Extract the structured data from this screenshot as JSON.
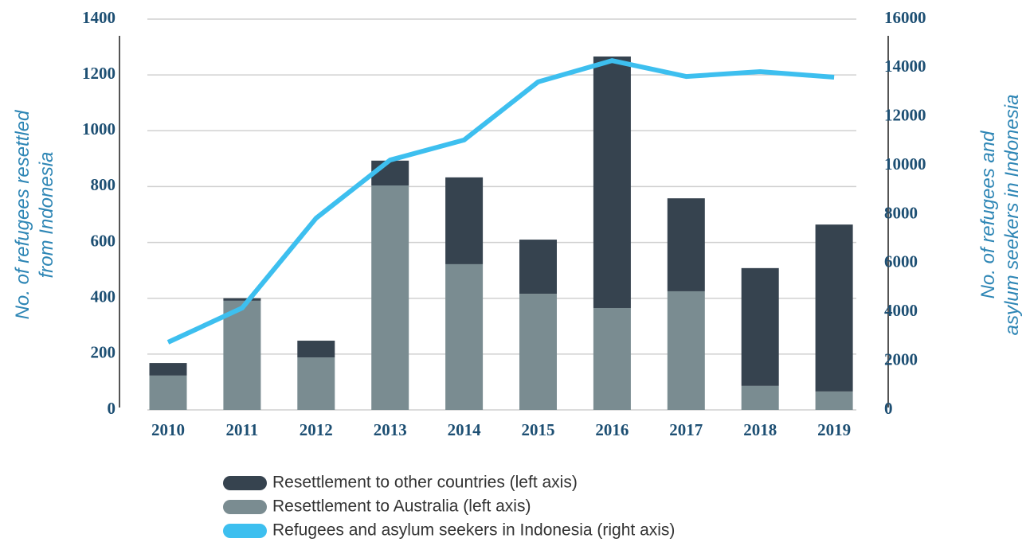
{
  "chart_data": {
    "type": "bar",
    "categories": [
      "2010",
      "2011",
      "2012",
      "2013",
      "2014",
      "2015",
      "2016",
      "2017",
      "2018",
      "2019"
    ],
    "series": [
      {
        "name": "Resettlement to other countries (left axis)",
        "type": "bar",
        "color": "#36434f",
        "values": [
          45,
          9,
          60,
          89,
          311,
          194,
          901,
          333,
          422,
          598
        ]
      },
      {
        "name": "Resettlement to Australia (left axis)",
        "type": "bar",
        "color": "#7a8c91",
        "values": [
          123,
          391,
          188,
          804,
          522,
          416,
          365,
          425,
          86,
          66
        ]
      },
      {
        "name": "Refugees and asylum seekers in Indonesia (right axis)",
        "type": "line",
        "axis": "y2",
        "color": "#3dbfef",
        "values": [
          2770,
          4170,
          7850,
          10230,
          11050,
          13430,
          14300,
          13650,
          13850,
          13620
        ]
      }
    ],
    "ylabel": [
      "No. of refugees resettled",
      "from Indonesia"
    ],
    "y2label": [
      "No. of refugees and",
      "asylum seekers in Indonesia"
    ],
    "ylim": [
      0,
      1400
    ],
    "yticks": [
      0,
      200,
      400,
      600,
      800,
      1000,
      1200,
      1400
    ],
    "y2lim": [
      0,
      16000
    ],
    "y2ticks": [
      0,
      2000,
      4000,
      6000,
      8000,
      10000,
      12000,
      14000,
      16000
    ],
    "grid": true,
    "legend": "bottom"
  }
}
